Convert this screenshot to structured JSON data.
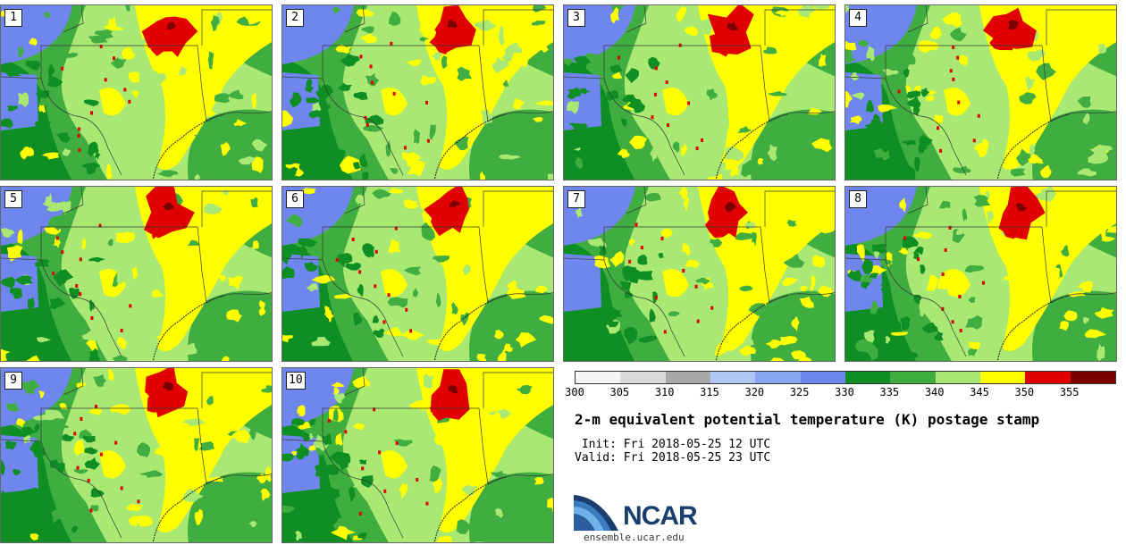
{
  "panels": [
    {
      "label": "1"
    },
    {
      "label": "2"
    },
    {
      "label": "3"
    },
    {
      "label": "4"
    },
    {
      "label": "5"
    },
    {
      "label": "6"
    },
    {
      "label": "7"
    },
    {
      "label": "8"
    },
    {
      "label": "9"
    },
    {
      "label": "10"
    }
  ],
  "legend": {
    "ticks": [
      "300",
      "305",
      "310",
      "315",
      "320",
      "325",
      "330",
      "335",
      "340",
      "345",
      "350",
      "355"
    ],
    "colors": [
      "#f5f5f5",
      "#dadada",
      "#a9a9a9",
      "#b0c6f5",
      "#8aa6f2",
      "#6f86ef",
      "#0e8e23",
      "#3fad3f",
      "#a8e873",
      "#ffff00",
      "#e00000",
      "#7a0000"
    ]
  },
  "title": "2-m equivalent potential temperature (K) postage stamp",
  "init_line": " Init: Fri 2018-05-25 12 UTC",
  "valid_line": "Valid: Fri 2018-05-25 23 UTC",
  "logo": {
    "text": "NCAR",
    "url": "ensemble.ucar.edu"
  },
  "map_colors": {
    "blue": "#6f86ef",
    "dark_green": "#0e8e23",
    "mid_green": "#3fad3f",
    "light_green": "#a8e873",
    "yellow": "#ffff00",
    "red": "#e00000",
    "dark_red": "#7a0000",
    "border": "#3a3a3a"
  }
}
